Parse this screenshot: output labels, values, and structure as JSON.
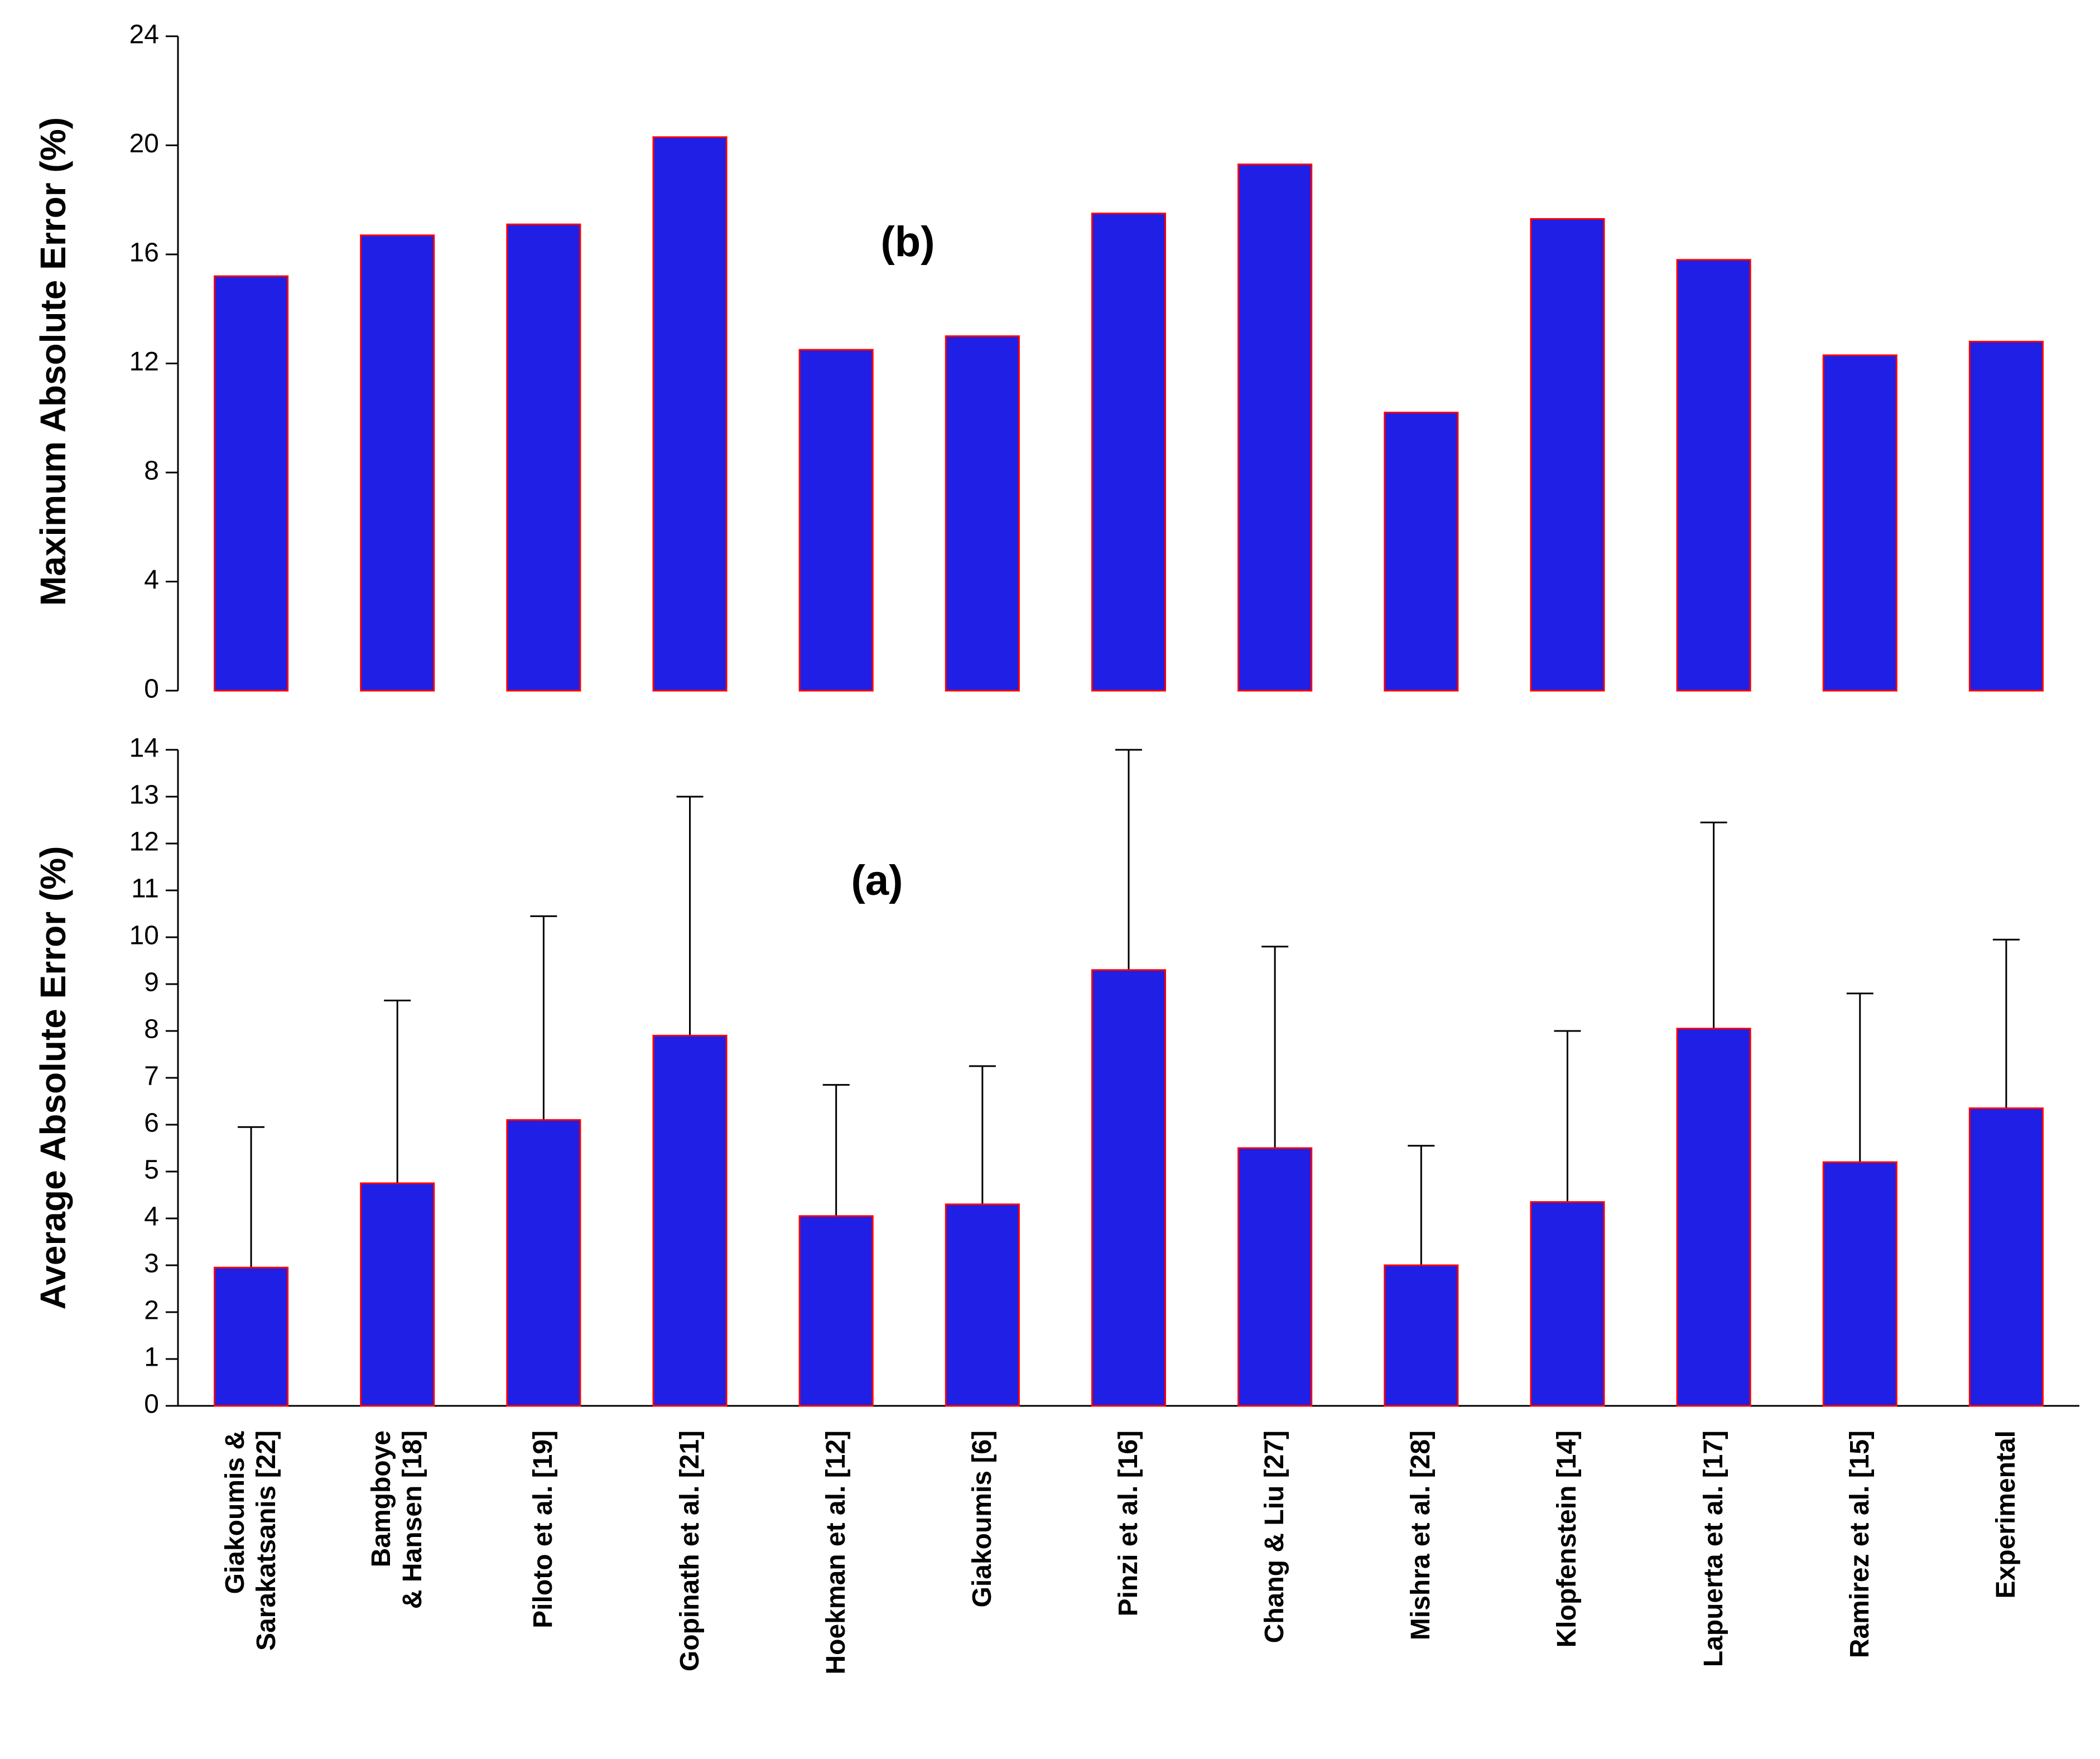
{
  "chart_data": [
    {
      "type": "bar",
      "ylabel": "Maximum Absolute Error (%)",
      "annotation": "(b)",
      "values": [
        15.2,
        16.7,
        17.1,
        20.3,
        12.5,
        13.0,
        17.5,
        19.3,
        10.2,
        17.3,
        15.8,
        12.3,
        12.8
      ],
      "color": "#1f1fe6",
      "edgecolor": "#ff0000",
      "ylim": [
        0,
        24
      ],
      "yticks": [
        0,
        4,
        8,
        12,
        16,
        20,
        24
      ]
    },
    {
      "type": "bar",
      "ylabel": "Average Absolute Error (%)",
      "annotation": "(a)",
      "categories": [
        "Giakoumis &\nSarakatsanis [22]",
        "Bamgboye\n& Hansen [18]",
        "Piloto et al. [19]",
        "Gopinath et al. [21]",
        "Hoekman et al. [12]",
        "Giakoumis [6]",
        "Pinzi et al. [16]",
        "Chang & Liu [27]",
        "Mishra et al. [28]",
        "Klopfenstein [14]",
        "Lapuerta et al. [17]",
        "Ramirez et al. [15]",
        "Experimental"
      ],
      "values": [
        2.95,
        4.75,
        6.1,
        7.9,
        4.05,
        4.3,
        9.3,
        5.5,
        3.0,
        4.35,
        8.05,
        5.2,
        6.35
      ],
      "errors": [
        3.0,
        3.9,
        4.35,
        5.1,
        2.8,
        2.95,
        4.7,
        4.3,
        2.55,
        3.65,
        4.4,
        3.6,
        3.6
      ],
      "color": "#1f1fe6",
      "edgecolor": "#ff0000",
      "ylim": [
        0,
        14
      ],
      "yticks": [
        0,
        1,
        2,
        3,
        4,
        5,
        6,
        7,
        8,
        9,
        10,
        11,
        12,
        13,
        14
      ]
    }
  ]
}
